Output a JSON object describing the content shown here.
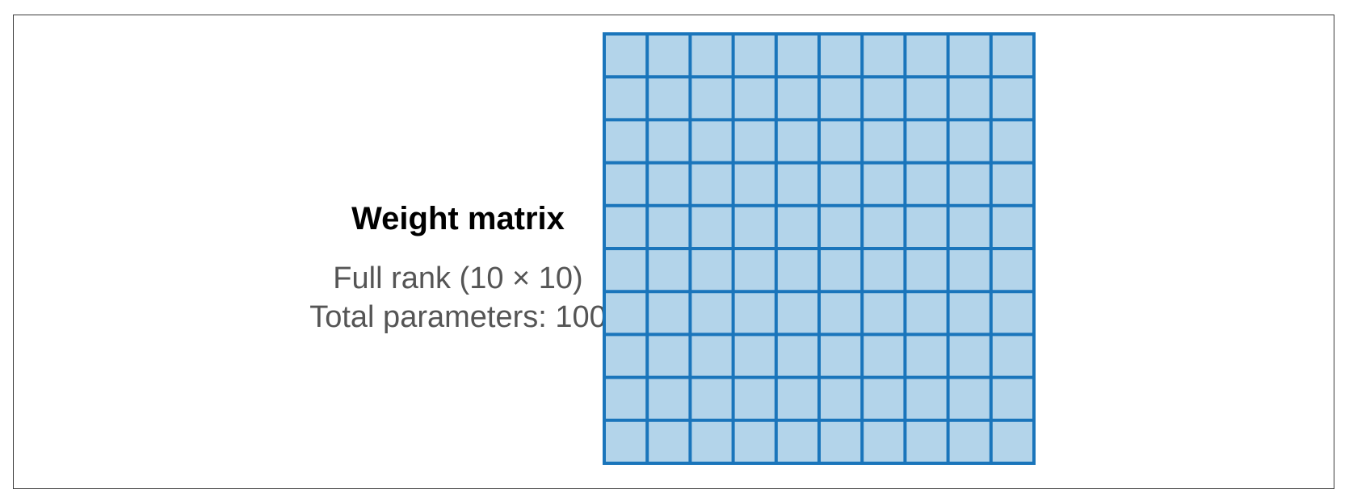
{
  "diagram": {
    "title": "Weight matrix",
    "rank_label": "Full rank (10 × 10)",
    "params_label": "Total parameters: 100",
    "matrix": {
      "rows": 10,
      "cols": 10,
      "cell_fill": "#b3d4ea",
      "line_color": "#1a75bb"
    }
  }
}
